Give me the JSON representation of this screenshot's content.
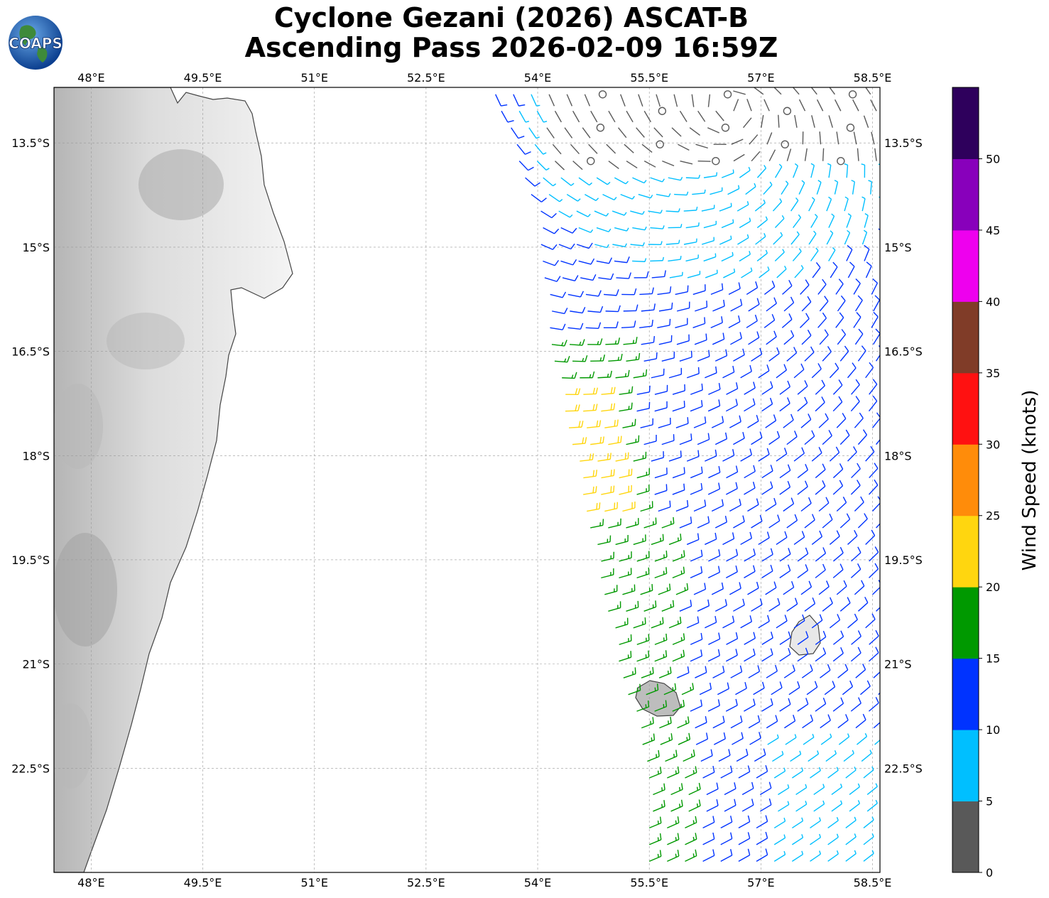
{
  "title": {
    "line1": "Cyclone Gezani (2026) ASCAT-B",
    "line2": "Ascending Pass 2026-02-09 16:59Z"
  },
  "logo": {
    "text": "COAPS"
  },
  "map": {
    "lon_range": [
      47.5,
      58.6
    ],
    "lat_range": [
      -24.0,
      -12.7
    ],
    "lon_ticks": [
      "48°E",
      "49.5°E",
      "51°E",
      "52.5°E",
      "54°E",
      "55.5°E",
      "57°E",
      "58.5°E"
    ],
    "lat_ticks": [
      "13.5°S",
      "15°S",
      "16.5°S",
      "18°S",
      "19.5°S",
      "21°S",
      "22.5°S"
    ],
    "gridlines": true,
    "land_color": "#e6e6e6",
    "coast_color": "#444444"
  },
  "colorbar": {
    "label": "Wind Speed (knots)",
    "ticks": [
      "0",
      "5",
      "10",
      "15",
      "20",
      "25",
      "30",
      "35",
      "40",
      "45",
      "50"
    ],
    "bins": [
      {
        "range": [
          0,
          5
        ],
        "color": "#595959"
      },
      {
        "range": [
          5,
          10
        ],
        "color": "#00bfff"
      },
      {
        "range": [
          10,
          15
        ],
        "color": "#0033ff"
      },
      {
        "range": [
          15,
          20
        ],
        "color": "#009900"
      },
      {
        "range": [
          20,
          25
        ],
        "color": "#ffd60f"
      },
      {
        "range": [
          25,
          30
        ],
        "color": "#ff8c0a"
      },
      {
        "range": [
          30,
          35
        ],
        "color": "#ff1111"
      },
      {
        "range": [
          35,
          40
        ],
        "color": "#803c28"
      },
      {
        "range": [
          40,
          45
        ],
        "color": "#ee00ee"
      },
      {
        "range": [
          45,
          50
        ],
        "color": "#8800bb"
      },
      {
        "range": [
          50,
          55
        ],
        "color": "#2e005c"
      }
    ]
  },
  "wind_field": {
    "description_none": "",
    "swath_west_edge_deg_lon": [
      [
        -12.7,
        53.4
      ],
      [
        -14.5,
        54.0
      ],
      [
        -16.5,
        54.2
      ],
      [
        -18.0,
        54.5
      ],
      [
        -19.5,
        54.8
      ],
      [
        -21.0,
        55.1
      ],
      [
        -22.5,
        55.5
      ],
      [
        -24.0,
        55.5
      ]
    ],
    "islands": [
      {
        "name": "",
        "center": [
          55.5,
          -21.1
        ]
      },
      {
        "name": "",
        "center": [
          57.55,
          -20.25
        ]
      }
    ]
  }
}
